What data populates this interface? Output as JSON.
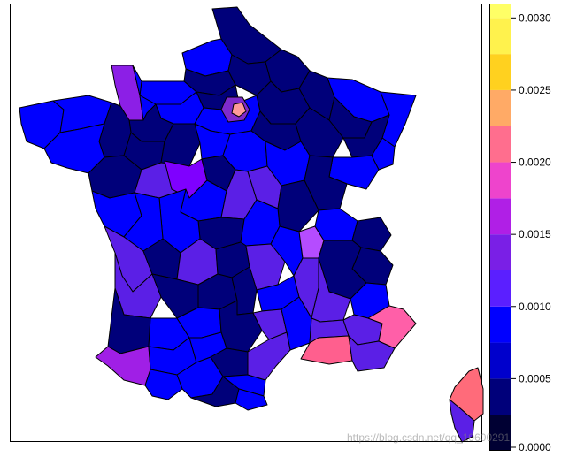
{
  "map": {
    "region_colors": {
      "nord": "#00007A",
      "pas_de_calais": "#0000FF",
      "somme": "#00007A",
      "aisne": "#00007A",
      "ardennes": "#00007A",
      "seine_maritime": "#0000FF",
      "oise": "#00007A",
      "marne": "#00007A",
      "meuse": "#00007A",
      "moselle": "#0000FF",
      "bas_rhin": "#0000FF",
      "haut_rhin": "#0000FF",
      "vosges": "#00007A",
      "meurthe_moselle": "#00007A",
      "manche": "#8C1FE6",
      "calvados": "#0000FF",
      "eure": "#0000FF",
      "orne": "#00007A",
      "finistere": "#0000FF",
      "cotes_armor": "#0000FF",
      "ille_vilaine": "#00007A",
      "morbihan": "#0000FF",
      "loire_atlantique": "#00007A",
      "mayenne": "#00007A",
      "sarthe": "#00007A",
      "maine_loire": "#5B1FE6",
      "vendee": "#0000FF",
      "paris_region": "#0000FF",
      "paris_center": "#FF9A9A",
      "val_oise_ring": "#7F2ACC",
      "loiret": "#7F00FF",
      "eure_loir": "#0000FF",
      "loir_cher": "#00007A",
      "indre_loire": "#0000FF",
      "yonne": "#0000FF",
      "aube": "#00007A",
      "haute_marne": "#00007A",
      "cote_or": "#0000FF",
      "doubs": "#0000FF",
      "jura": "#00007A",
      "saone_loire": "#00007A",
      "nievre": "#5B1FE6",
      "cher": "#5B1FE6",
      "indre": "#00007A",
      "vienne": "#0000FF",
      "deux_sevres": "#0000FF",
      "charente_maritime": "#5B1FE6",
      "charente": "#00007A",
      "haute_vienne": "#5B1FE6",
      "creuse": "#00007A",
      "allier": "#0000FF",
      "puy_dome": "#5B1FE6",
      "loire": "#0000FF",
      "rhone": "#B54CFF",
      "ain": "#0000FF",
      "haute_savoie": "#00007A",
      "savoie": "#00007A",
      "isere": "#00007A",
      "gironde": "#5B1FE6",
      "dordogne": "#00007A",
      "correze": "#00007A",
      "cantal": "#00007A",
      "haute_loire": "#0000FF",
      "ardeche": "#5B1FE6",
      "drome": "#5B1FE6",
      "hautes_alpes": "#0000FF",
      "alpes_hp": "#5B1FE6",
      "alpes_maritimes": "#FF5FA8",
      "landes": "#00007A",
      "lot_garonne": "#0000FF",
      "lot": "#0000FF",
      "aveyron": "#00007A",
      "lozere": "#5B1FE6",
      "gard": "#0000FF",
      "vaucluse": "#5B1FE6",
      "bouches_rhone": "#FF5F8E",
      "var": "#5B1FE6",
      "pyrenees_atlantiques": "#A01FE6",
      "gers": "#0000FF",
      "tarn_garonne": "#0000FF",
      "tarn": "#00007A",
      "haute_garonne": "#0000FF",
      "herault": "#5B1FE6",
      "hautes_pyrenees": "#0000FF",
      "ariege": "#00007A",
      "aude": "#0000FF",
      "pyrenees_orientales": "#0000FF",
      "corse_nord": "#FF6B7A",
      "corse_sud": "#5B1FE6"
    }
  },
  "legend": {
    "tick_labels": [
      "0.0030",
      "0.0025",
      "0.0020",
      "0.0015",
      "0.0010",
      "0.0005",
      "0.0000"
    ],
    "tick_values": [
      0.003,
      0.0025,
      0.002,
      0.0015,
      0.001,
      0.0005,
      0.0
    ],
    "range": [
      0.0,
      0.003
    ],
    "bins": [
      {
        "from": 0.0,
        "to": 0.00025,
        "color": "#000033"
      },
      {
        "from": 0.00025,
        "to": 0.0005,
        "color": "#00007A"
      },
      {
        "from": 0.0005,
        "to": 0.00075,
        "color": "#0000CC"
      },
      {
        "from": 0.00075,
        "to": 0.001,
        "color": "#0000FF"
      },
      {
        "from": 0.001,
        "to": 0.00125,
        "color": "#5B1FFF"
      },
      {
        "from": 0.00125,
        "to": 0.0015,
        "color": "#7A1FE6"
      },
      {
        "from": 0.0015,
        "to": 0.00175,
        "color": "#B01FE6"
      },
      {
        "from": 0.00175,
        "to": 0.002,
        "color": "#EE44CC"
      },
      {
        "from": 0.002,
        "to": 0.00225,
        "color": "#FF6E8E"
      },
      {
        "from": 0.00225,
        "to": 0.0025,
        "color": "#FFAA66"
      },
      {
        "from": 0.0025,
        "to": 0.00275,
        "color": "#FFD11F"
      },
      {
        "from": 0.00275,
        "to": 0.003,
        "color": "#FFF24D"
      },
      {
        "from": 0.003,
        "to": 0.0031,
        "color": "#FFFF66"
      }
    ]
  },
  "watermark": "https://blog.csdn.net/qq_19600291"
}
